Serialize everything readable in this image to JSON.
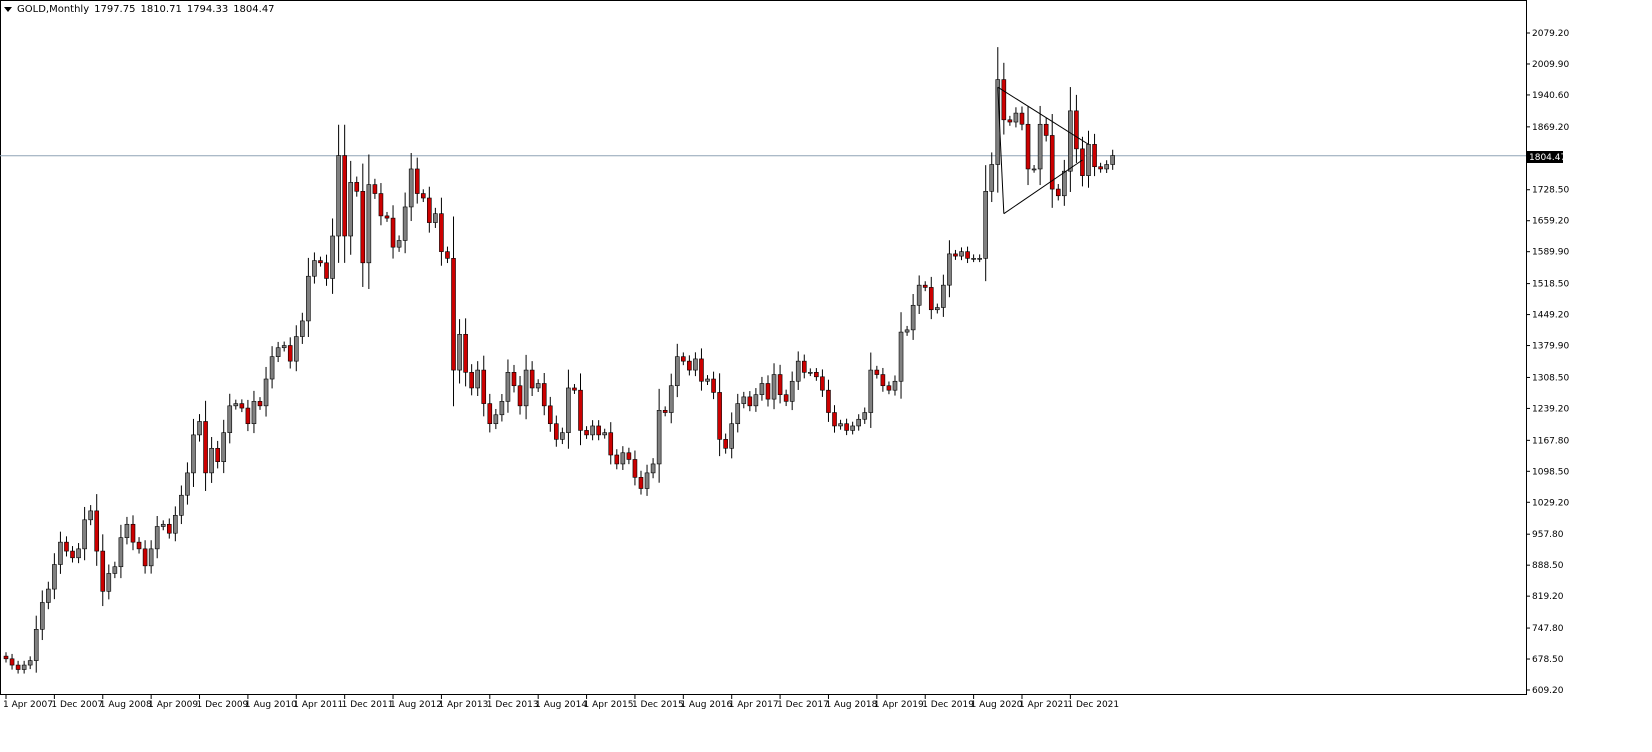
{
  "header": {
    "symbol": "GOLD,Monthly",
    "open": "1797.75",
    "high": "1810.71",
    "low": "1794.33",
    "close": "1804.47"
  },
  "chart_data": {
    "type": "candlestick",
    "y_ticks": [
      "2079.20",
      "2009.90",
      "1940.60",
      "1869.20",
      "1728.50",
      "1659.20",
      "1589.90",
      "1518.50",
      "1449.20",
      "1379.90",
      "1308.50",
      "1239.20",
      "1167.80",
      "1098.50",
      "1029.20",
      "957.80",
      "888.50",
      "819.20",
      "747.80",
      "678.50",
      "609.20"
    ],
    "x_ticks": [
      "1 Apr 2007",
      "1 Dec 2007",
      "1 Aug 2008",
      "1 Apr 2009",
      "1 Dec 2009",
      "1 Aug 2010",
      "1 Apr 2011",
      "1 Dec 2011",
      "1 Aug 2012",
      "1 Apr 2013",
      "1 Dec 2013",
      "1 Aug 2014",
      "1 Apr 2015",
      "1 Dec 2015",
      "1 Aug 2016",
      "1 Apr 2017",
      "1 Dec 2017",
      "1 Aug 2018",
      "1 Apr 2019",
      "1 Dec 2019",
      "1 Aug 2020",
      "1 Apr 2021",
      "1 Dec 2021"
    ],
    "ylim": [
      609.2,
      2079.2
    ],
    "current_price": "1804.47",
    "colors": {
      "up": "#808080",
      "down": "#cc0000",
      "wick": "#000000",
      "price_line": "#8fa3b5"
    },
    "closes": [
      679,
      665,
      655,
      665,
      675,
      745,
      805,
      835,
      890,
      940,
      920,
      905,
      925,
      990,
      1010,
      920,
      830,
      870,
      885,
      950,
      980,
      940,
      925,
      887,
      925,
      975,
      980,
      960,
      1000,
      1045,
      1095,
      1180,
      1210,
      1095,
      1150,
      1120,
      1185,
      1245,
      1250,
      1240,
      1205,
      1255,
      1245,
      1305,
      1355,
      1375,
      1380,
      1345,
      1400,
      1435,
      1535,
      1570,
      1565,
      1530,
      1625,
      1805,
      1625,
      1745,
      1725,
      1565,
      1740,
      1720,
      1670,
      1665,
      1600,
      1615,
      1690,
      1775,
      1720,
      1710,
      1655,
      1675,
      1590,
      1575,
      1325,
      1405,
      1320,
      1285,
      1325,
      1250,
      1205,
      1225,
      1255,
      1320,
      1290,
      1245,
      1325,
      1285,
      1295,
      1245,
      1205,
      1170,
      1185,
      1285,
      1280,
      1190,
      1180,
      1200,
      1180,
      1185,
      1135,
      1115,
      1140,
      1125,
      1085,
      1060,
      1095,
      1115,
      1235,
      1230,
      1290,
      1355,
      1345,
      1325,
      1350,
      1300,
      1305,
      1275,
      1170,
      1150,
      1205,
      1250,
      1265,
      1245,
      1270,
      1295,
      1260,
      1315,
      1270,
      1255,
      1300,
      1345,
      1320,
      1320,
      1310,
      1280,
      1230,
      1200,
      1205,
      1190,
      1200,
      1215,
      1230,
      1325,
      1315,
      1290,
      1280,
      1300,
      1410,
      1415,
      1470,
      1515,
      1510,
      1460,
      1465,
      1515,
      1585,
      1580,
      1590,
      1575,
      1575,
      1575,
      1725,
      1785,
      1975,
      1885,
      1880,
      1900,
      1875,
      1775,
      1775,
      1875,
      1850,
      1730,
      1715,
      1770,
      1905,
      1820,
      1760,
      1830,
      1780,
      1775,
      1785,
      1805
    ],
    "triangle_upper": {
      "x": [
        "1 Dec 2020",
        "1 Mar 2022"
      ],
      "y": [
        1958,
        1830
      ]
    },
    "triangle_lower": {
      "x": [
        "1 Jan 2021",
        "1 Feb 2022"
      ],
      "y": [
        1675,
        1795
      ]
    }
  }
}
